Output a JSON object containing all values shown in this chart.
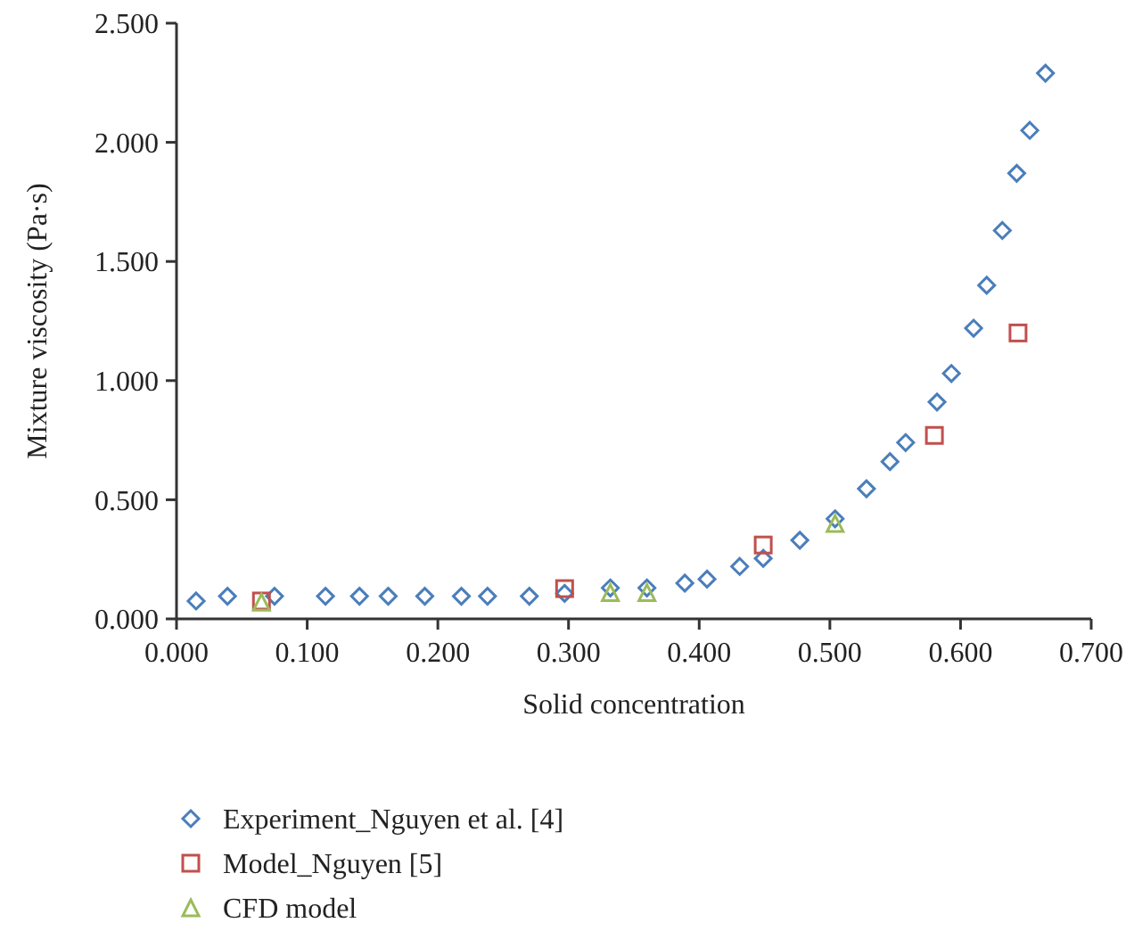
{
  "chart_data": {
    "type": "scatter",
    "xlabel": "Solid concentration",
    "ylabel": "Mixture viscosity (Pa·s)",
    "xlim": [
      0,
      0.7
    ],
    "ylim": [
      0,
      2.5
    ],
    "xticks": [
      {
        "value": 0,
        "label": "0.000"
      },
      {
        "value": 0.1,
        "label": "0.100"
      },
      {
        "value": 0.2,
        "label": "0.200"
      },
      {
        "value": 0.3,
        "label": "0.300"
      },
      {
        "value": 0.4,
        "label": "0.400"
      },
      {
        "value": 0.5,
        "label": "0.500"
      },
      {
        "value": 0.6,
        "label": "0.600"
      },
      {
        "value": 0.7,
        "label": "0.700"
      }
    ],
    "yticks": [
      {
        "value": 0,
        "label": "0.000"
      },
      {
        "value": 0.5,
        "label": "0.500"
      },
      {
        "value": 1,
        "label": "1.000"
      },
      {
        "value": 1.5,
        "label": "1.500"
      },
      {
        "value": 2,
        "label": "2.000"
      },
      {
        "value": 2.5,
        "label": "2.500"
      }
    ],
    "grid": false,
    "legend": "bottom",
    "series": [
      {
        "name": "Experiment_Nguyen et al. [4]",
        "color": "#4a7ebb",
        "marker": "diamond",
        "x": [
          0.015,
          0.039,
          0.075,
          0.114,
          0.14,
          0.162,
          0.19,
          0.218,
          0.238,
          0.27,
          0.297,
          0.332,
          0.36,
          0.389,
          0.406,
          0.431,
          0.449,
          0.477,
          0.504,
          0.528,
          0.546,
          0.558,
          0.582,
          0.593,
          0.61,
          0.62,
          0.632,
          0.643,
          0.653,
          0.665
        ],
        "values": [
          0.075,
          0.095,
          0.095,
          0.095,
          0.095,
          0.095,
          0.095,
          0.095,
          0.095,
          0.095,
          0.107,
          0.13,
          0.13,
          0.15,
          0.167,
          0.22,
          0.254,
          0.33,
          0.42,
          0.546,
          0.66,
          0.74,
          0.91,
          1.03,
          1.22,
          1.4,
          1.63,
          1.87,
          2.05,
          2.29
        ]
      },
      {
        "name": "Model_Nguyen [5]",
        "color": "#c0504d",
        "marker": "square",
        "x": [
          0.065,
          0.297,
          0.449,
          0.58,
          0.644
        ],
        "values": [
          0.075,
          0.127,
          0.31,
          0.77,
          1.2
        ]
      },
      {
        "name": "CFD model",
        "color": "#9bbb59",
        "marker": "triangle",
        "x": [
          0.065,
          0.332,
          0.36,
          0.504
        ],
        "values": [
          0.07,
          0.11,
          0.11,
          0.4
        ]
      }
    ]
  }
}
